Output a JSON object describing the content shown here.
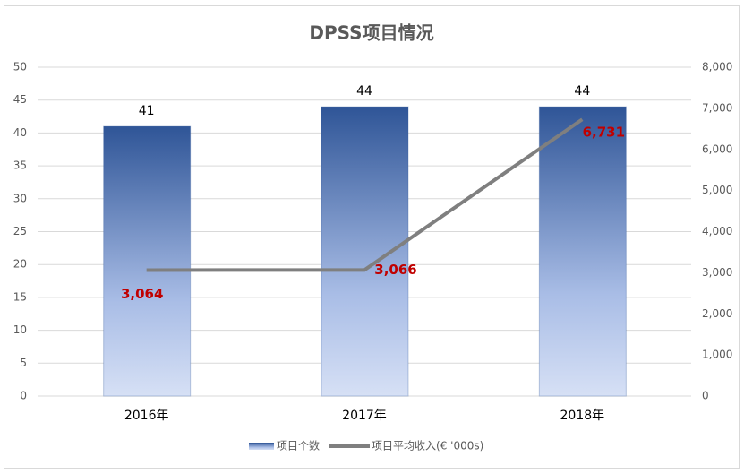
{
  "chart_data": {
    "type": "bar-line",
    "title": "DPSS项目情况",
    "categories": [
      "2016年",
      "2017年",
      "2018年"
    ],
    "series": [
      {
        "name": "项目个数",
        "color": "#2f5597",
        "values": [
          41,
          44,
          44
        ]
      },
      {
        "name": "项目平均收入(€ '000s)",
        "color": "#7f7f7f",
        "axis": "y2",
        "values": [
          3064,
          3066,
          6731
        ],
        "value_labels": [
          "3,064",
          "3,066",
          "6,731"
        ],
        "label_color": "#c00000"
      }
    ],
    "ylim": [
      0,
      50
    ],
    "yticks": [
      0,
      5,
      10,
      15,
      20,
      25,
      30,
      35,
      40,
      45,
      50
    ],
    "y2lim": [
      0,
      8000
    ],
    "y2ticks": [
      0,
      {
        "value": 1000,
        "label": "1,000"
      },
      {
        "value": 2000,
        "label": "2,000"
      },
      {
        "value": 3000,
        "label": "3,000"
      },
      {
        "value": 4000,
        "label": "4,000"
      },
      {
        "value": 5000,
        "label": "5,000"
      },
      {
        "value": 6000,
        "label": "6,000"
      },
      {
        "value": 7000,
        "label": "7,000"
      },
      {
        "value": 8000,
        "label": "8,000"
      }
    ],
    "grid": true,
    "legend": "bottom"
  }
}
